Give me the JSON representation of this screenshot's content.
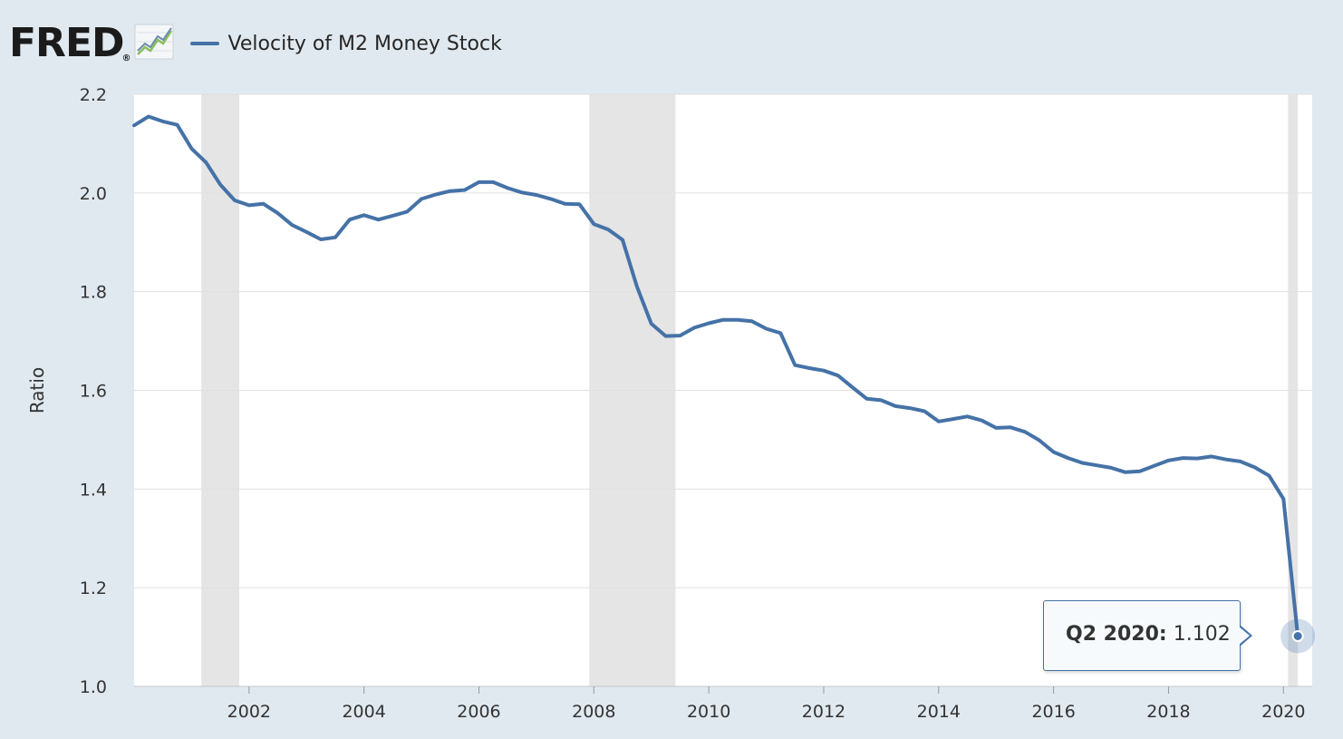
{
  "logo": {
    "text": "FRED",
    "reg_mark": "®"
  },
  "icons": {
    "logo_graph": "line-chart-icon"
  },
  "colors": {
    "series": "#4572a7",
    "recession": "#e5e5e5",
    "plot_bg": "#ffffff",
    "frame_bg": "#e1e9f0",
    "grid": "#e0e0e0"
  },
  "chart_data": {
    "type": "line",
    "title": "Velocity of M2 Money Stock",
    "xlabel": "",
    "ylabel": "Ratio",
    "ylim": [
      1.0,
      2.2
    ],
    "xlim": [
      2000.0,
      2020.5
    ],
    "yticks": [
      1.0,
      1.2,
      1.4,
      1.6,
      1.8,
      2.0,
      2.2
    ],
    "ytick_labels": [
      "1.0",
      "1.2",
      "1.4",
      "1.6",
      "1.8",
      "2.0",
      "2.2"
    ],
    "xticks": [
      2002,
      2004,
      2006,
      2008,
      2010,
      2012,
      2014,
      2016,
      2018,
      2020
    ],
    "xtick_labels": [
      "2002",
      "2004",
      "2006",
      "2008",
      "2010",
      "2012",
      "2014",
      "2016",
      "2018",
      "2020"
    ],
    "grid": true,
    "legend": "top-left",
    "recessions": [
      [
        2001.17,
        2001.83
      ],
      [
        2007.92,
        2009.42
      ],
      [
        2020.08,
        2020.25
      ]
    ],
    "series": [
      {
        "name": "Velocity of M2 Money Stock",
        "x": [
          2000.0,
          2000.25,
          2000.5,
          2000.75,
          2001.0,
          2001.25,
          2001.5,
          2001.75,
          2002.0,
          2002.25,
          2002.5,
          2002.75,
          2003.0,
          2003.25,
          2003.5,
          2003.75,
          2004.0,
          2004.25,
          2004.5,
          2004.75,
          2005.0,
          2005.25,
          2005.5,
          2005.75,
          2006.0,
          2006.25,
          2006.5,
          2006.75,
          2007.0,
          2007.25,
          2007.5,
          2007.75,
          2008.0,
          2008.25,
          2008.5,
          2008.75,
          2009.0,
          2009.25,
          2009.5,
          2009.75,
          2010.0,
          2010.25,
          2010.5,
          2010.75,
          2011.0,
          2011.25,
          2011.5,
          2011.75,
          2012.0,
          2012.25,
          2012.5,
          2012.75,
          2013.0,
          2013.25,
          2013.5,
          2013.75,
          2014.0,
          2014.25,
          2014.5,
          2014.75,
          2015.0,
          2015.25,
          2015.5,
          2015.75,
          2016.0,
          2016.25,
          2016.5,
          2016.75,
          2017.0,
          2017.25,
          2017.5,
          2017.75,
          2018.0,
          2018.25,
          2018.5,
          2018.75,
          2019.0,
          2019.25,
          2019.5,
          2019.75,
          2020.0,
          2020.25
        ],
        "values": [
          2.137,
          2.155,
          2.145,
          2.138,
          2.09,
          2.062,
          2.017,
          1.985,
          1.975,
          1.978,
          1.959,
          1.935,
          1.921,
          1.906,
          1.91,
          1.946,
          1.955,
          1.946,
          1.954,
          1.962,
          1.988,
          1.997,
          2.004,
          2.006,
          2.022,
          2.022,
          2.01,
          2.001,
          1.996,
          1.988,
          1.978,
          1.977,
          1.937,
          1.926,
          1.905,
          1.81,
          1.735,
          1.71,
          1.711,
          1.727,
          1.736,
          1.743,
          1.743,
          1.74,
          1.725,
          1.716,
          1.651,
          1.645,
          1.64,
          1.63,
          1.606,
          1.583,
          1.58,
          1.568,
          1.564,
          1.558,
          1.537,
          1.542,
          1.547,
          1.539,
          1.524,
          1.525,
          1.516,
          1.499,
          1.475,
          1.463,
          1.453,
          1.448,
          1.443,
          1.434,
          1.436,
          1.447,
          1.458,
          1.463,
          1.462,
          1.466,
          1.46,
          1.456,
          1.444,
          1.427,
          1.38,
          1.102
        ]
      }
    ],
    "tooltip": {
      "date": "Q2 2020:",
      "value": "1.102"
    }
  }
}
